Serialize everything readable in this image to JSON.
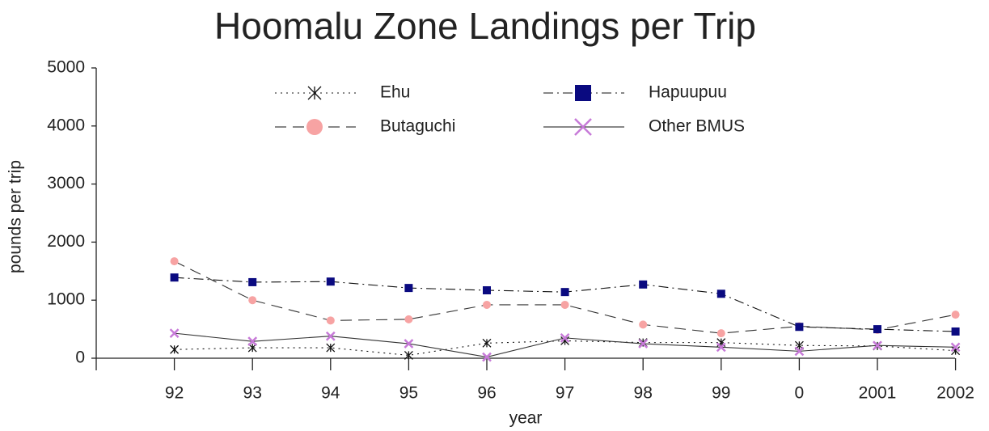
{
  "chart_data": {
    "type": "line",
    "title": "Hoomalu Zone Landings per Trip",
    "x_label": "year",
    "y_label": "pounds per trip",
    "categories": [
      null,
      "92",
      "93",
      "94",
      "95",
      "96",
      "97",
      "98",
      "99",
      "0",
      "2001",
      "2002"
    ],
    "series": [
      {
        "name": "Ehu",
        "color": "#111111",
        "marker": "asterisk",
        "dash": "dotted",
        "values": [
          null,
          150,
          180,
          180,
          50,
          260,
          300,
          270,
          270,
          220,
          210,
          130
        ]
      },
      {
        "name": "Butaguchi",
        "color": "#f7a3a3",
        "marker": "circle",
        "dash": "dashed",
        "values": [
          null,
          1670,
          1000,
          650,
          670,
          920,
          920,
          580,
          430,
          550,
          490,
          750
        ]
      },
      {
        "name": "Hapuupuu",
        "color": "#0a0a80",
        "marker": "square",
        "dash": "dashdot",
        "values": [
          null,
          1390,
          1310,
          1320,
          1210,
          1170,
          1140,
          1270,
          1110,
          540,
          500,
          460
        ]
      },
      {
        "name": "Other BMUS",
        "color": "#c77ad8",
        "marker": "x",
        "dash": "solid",
        "values": [
          null,
          430,
          290,
          380,
          250,
          20,
          350,
          250,
          190,
          120,
          220,
          190
        ]
      }
    ],
    "ylim": [
      0,
      5000
    ],
    "yticks": [
      0,
      1000,
      2000,
      3000,
      4000,
      5000
    ],
    "grid": false
  }
}
